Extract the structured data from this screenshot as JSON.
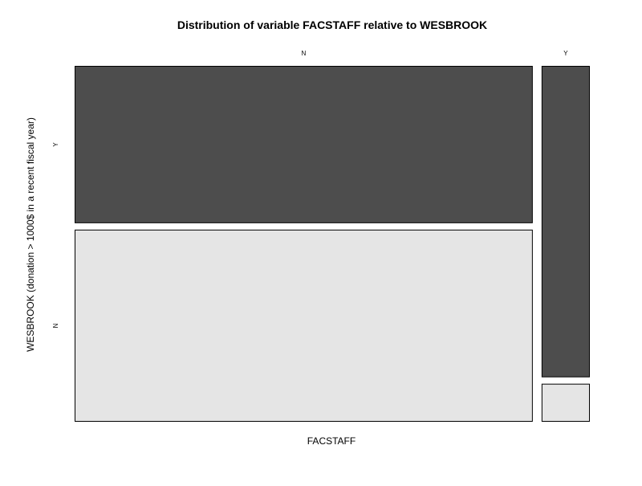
{
  "chart_data": {
    "type": "mosaic",
    "title": "Distribution of variable FACSTAFF relative to WESBROOK",
    "xlabel": "FACSTAFF",
    "ylabel": "WESBROOK (donation > 1000$ in a recent fiscal year)",
    "x_categories": [
      "N",
      "Y"
    ],
    "y_categories": [
      "Y",
      "N"
    ],
    "x_proportions": [
      0.906,
      0.094
    ],
    "conditional_proportions": {
      "N": {
        "Y": 0.45,
        "N": 0.55
      },
      "Y": {
        "Y": 0.893,
        "N": 0.107
      }
    },
    "colors": {
      "Y": "#4d4d4d",
      "N": "#e5e5e5"
    },
    "border_color": "#000000",
    "legend": "none",
    "grid": false
  }
}
